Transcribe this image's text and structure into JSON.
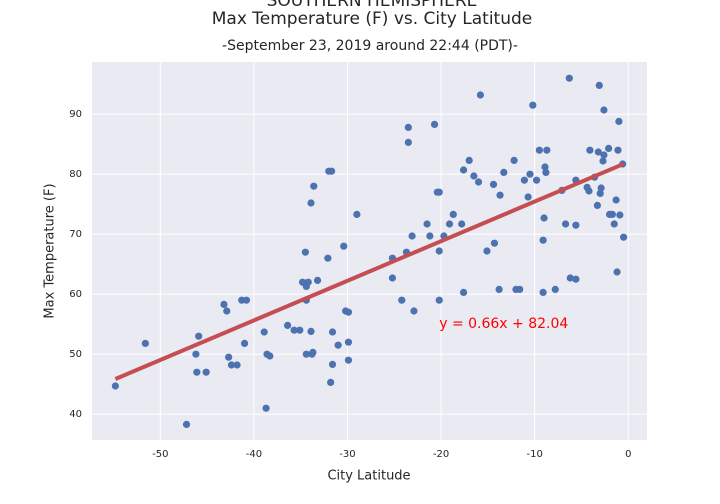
{
  "chart_data": {
    "type": "scatter",
    "title": [
      "SOUTHERN HEMISPHERE",
      "Max Temperature (F) vs. City Latitude"
    ],
    "subtitle": "-September 23, 2019 around 22:44 (PDT)-",
    "x_label": "City Latitude",
    "y_label": "Max Temperature (F)",
    "xlim": [
      -57.3,
      2.0
    ],
    "ylim": [
      35.7,
      98.7
    ],
    "xticks": [
      -50,
      -40,
      -30,
      -20,
      -10,
      0
    ],
    "yticks": [
      40,
      50,
      60,
      70,
      80,
      90
    ],
    "grid": true,
    "series": [
      {
        "color": "#4c72b0",
        "x": [
          -54.8,
          -51.6,
          -47.2,
          -46.2,
          -45.9,
          -46.1,
          -45.1,
          -43.2,
          -42.9,
          -42.7,
          -42.4,
          -41.8,
          -41.3,
          -40.8,
          -41.0,
          -38.9,
          -38.7,
          -38.6,
          -38.3,
          -36.4,
          -35.7,
          -35.1,
          -34.8,
          -34.4,
          -34.5,
          -34.2,
          -34.4,
          -34.4,
          -33.9,
          -33.8,
          -33.7,
          -33.9,
          -33.6,
          -33.2,
          -32.1,
          -32.0,
          -31.7,
          -31.8,
          -31.6,
          -31.6,
          -31.0,
          -30.4,
          -30.2,
          -29.9,
          -29.9,
          -29.9,
          -29.0,
          -25.2,
          -25.2,
          -24.2,
          -23.7,
          -23.5,
          -23.5,
          -23.1,
          -22.9,
          -21.5,
          -21.2,
          -20.7,
          -20.4,
          -20.2,
          -20.2,
          -20.2,
          -19.7,
          -19.1,
          -18.7,
          -17.8,
          -17.6,
          -17.6,
          -17.0,
          -16.5,
          -16.0,
          -15.8,
          -15.1,
          -14.4,
          -14.3,
          -13.8,
          -13.7,
          -13.3,
          -12.2,
          -12.0,
          -11.6,
          -11.1,
          -10.7,
          -10.5,
          -10.2,
          -9.8,
          -9.5,
          -9.1,
          -9.1,
          -9.0,
          -8.9,
          -8.7,
          -8.8,
          -7.8,
          -7.1,
          -6.7,
          -6.3,
          -6.2,
          -5.6,
          -5.6,
          -5.6,
          -4.4,
          -4.2,
          -4.1,
          -3.6,
          -3.3,
          -3.2,
          -3.1,
          -3.0,
          -2.9,
          -2.7,
          -2.6,
          -2.6,
          -2.1,
          -2.0,
          -1.7,
          -1.5,
          -1.3,
          -1.2,
          -1.1,
          -1.0,
          -0.9,
          -0.6,
          -0.5
        ],
        "values": [
          44.7,
          51.8,
          38.3,
          50,
          53,
          47,
          47,
          58.3,
          57.2,
          49.5,
          48.2,
          48.2,
          59,
          59,
          51.8,
          53.7,
          41,
          50,
          49.7,
          54.8,
          54,
          54,
          62,
          61.3,
          67,
          62,
          59,
          50,
          53.8,
          50,
          50.3,
          75.2,
          78,
          62.3,
          66,
          80.5,
          80.5,
          45.3,
          48.3,
          53.7,
          51.5,
          68,
          57.2,
          57,
          52,
          49,
          73.3,
          66,
          62.7,
          59,
          67,
          85.3,
          87.8,
          69.7,
          57.2,
          71.7,
          69.7,
          88.3,
          77,
          77,
          59,
          67.2,
          69.7,
          71.7,
          73.3,
          71.7,
          80.7,
          60.3,
          82.3,
          79.7,
          78.7,
          93.2,
          67.2,
          78.3,
          68.5,
          60.8,
          76.5,
          80.3,
          82.3,
          60.8,
          60.8,
          79,
          76.2,
          80,
          91.5,
          79,
          84,
          60.3,
          69,
          72.7,
          81.2,
          84,
          80.3,
          60.8,
          77.3,
          71.7,
          96,
          62.7,
          79,
          71.5,
          62.5,
          77.8,
          77.2,
          84,
          79.5,
          74.8,
          83.7,
          94.8,
          76.8,
          77.7,
          82.2,
          83.2,
          90.7,
          84.3,
          73.3,
          73.3,
          71.7,
          75.7,
          63.7,
          84,
          88.8,
          73.2,
          81.7,
          69.5
        ]
      }
    ],
    "regression": {
      "color": "#c44e52",
      "x": [
        -54.8,
        -0.5
      ],
      "values": [
        45.87,
        81.71
      ]
    },
    "annotation": {
      "text": "y = 0.66x + 82.04",
      "x": -20.2,
      "y": 55,
      "color": "#ff0000"
    }
  }
}
